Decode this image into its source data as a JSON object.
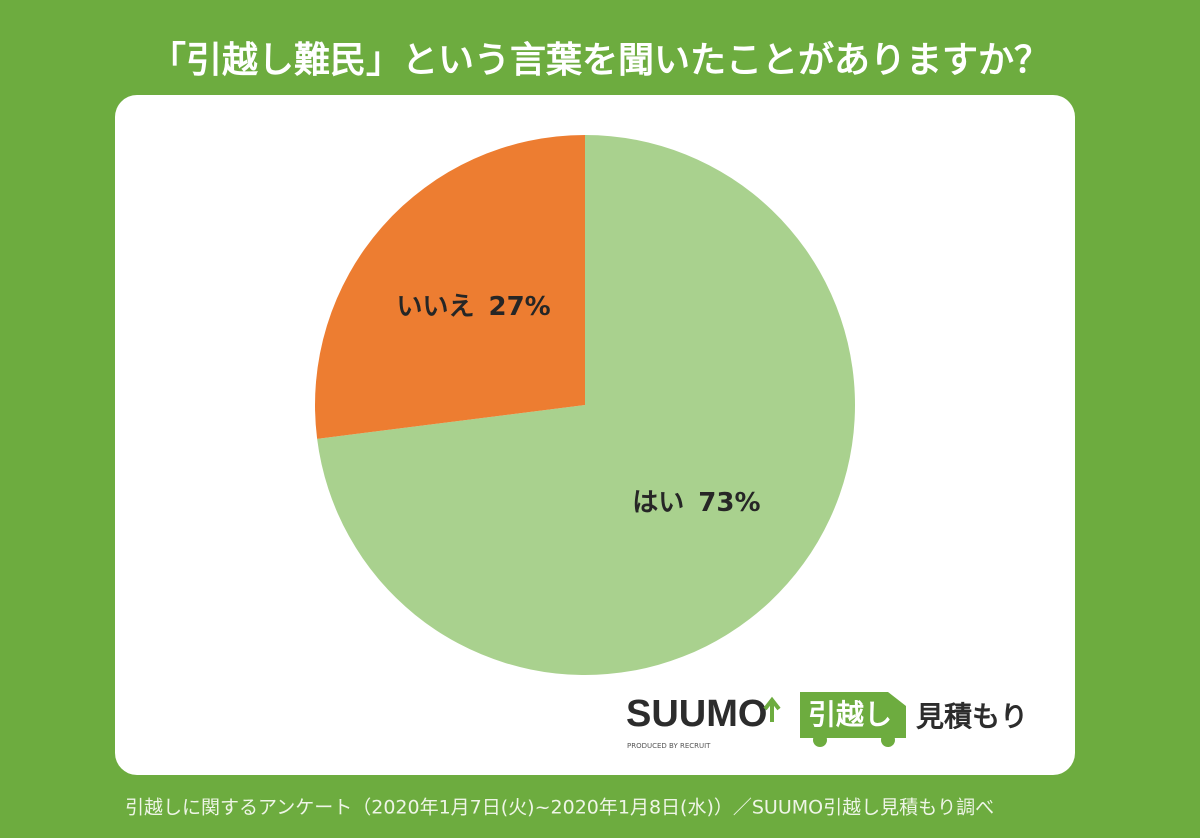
{
  "chart_data": {
    "type": "pie",
    "title": "「引越し難民」という言葉を聞いたことがありますか？",
    "categories": [
      "はい",
      "いいえ"
    ],
    "values": [
      73,
      27
    ],
    "value_labels": [
      "73%",
      "27%"
    ],
    "colors": [
      "#a9d18e",
      "#ed7d31"
    ],
    "source": "引越しに関するアンケート（2020年1月7日(火)~2020年1月8日(水)）／SUUMO引越し見積もり調べ"
  },
  "logo": {
    "brand": "SUUMO",
    "service": "引越し",
    "suffix": "見積もり",
    "credit": "PRODUCED BY RECRUIT"
  }
}
